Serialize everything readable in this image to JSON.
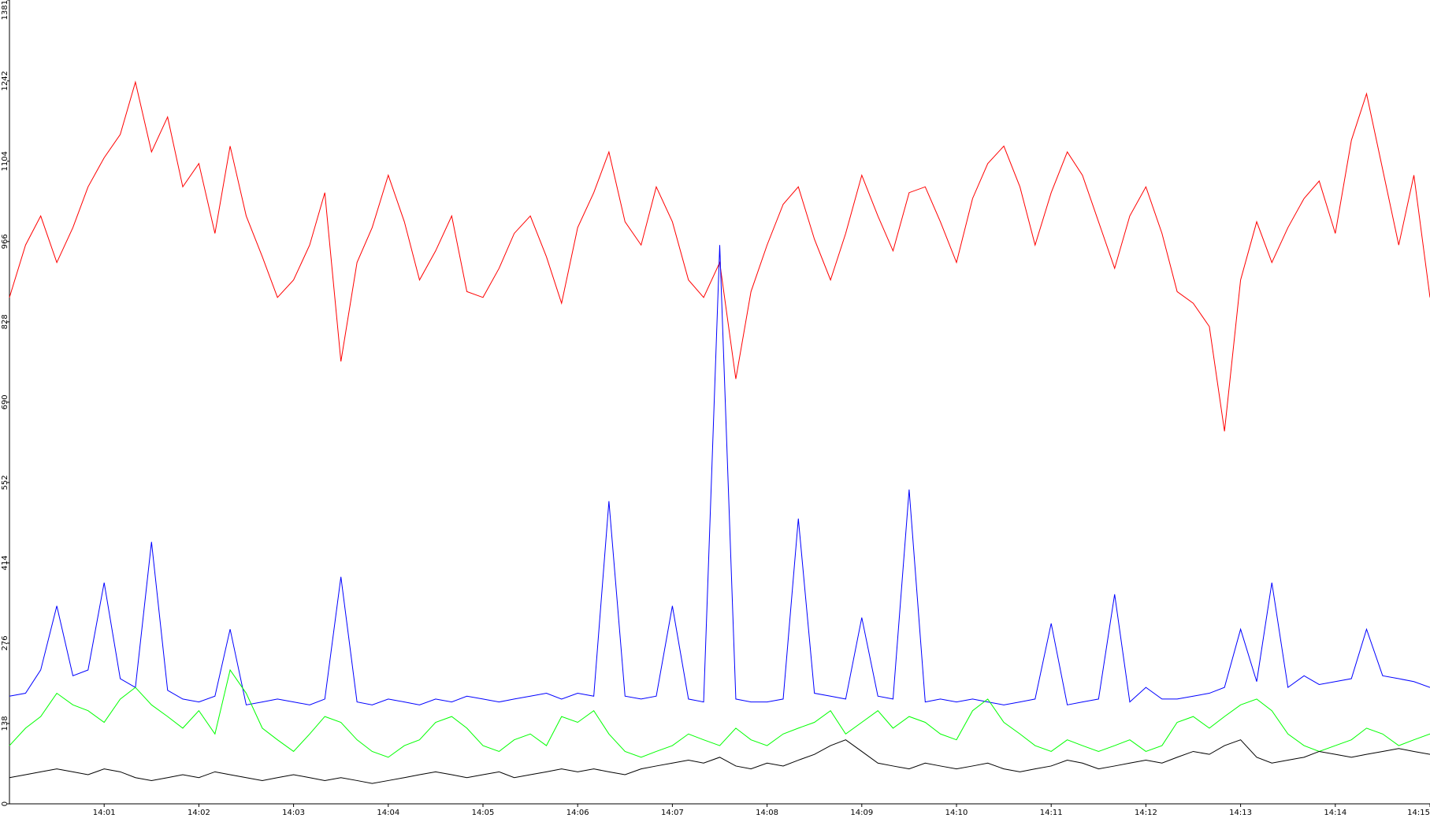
{
  "chart_data": {
    "type": "line",
    "x": [
      840,
      840.17,
      840.33,
      840.5,
      840.67,
      840.83,
      841,
      841.17,
      841.33,
      841.5,
      841.67,
      841.83,
      842,
      842.17,
      842.33,
      842.5,
      842.67,
      842.83,
      843,
      843.17,
      843.33,
      843.5,
      843.67,
      843.83,
      844,
      844.17,
      844.33,
      844.5,
      844.67,
      844.83,
      845,
      845.17,
      845.33,
      845.5,
      845.67,
      845.83,
      846,
      846.17,
      846.33,
      846.5,
      846.67,
      846.83,
      847,
      847.17,
      847.33,
      847.5,
      847.67,
      847.83,
      848,
      848.17,
      848.33,
      848.5,
      848.67,
      848.83,
      849,
      849.17,
      849.33,
      849.5,
      849.67,
      849.83,
      850,
      850.17,
      850.33,
      850.5,
      850.67,
      850.83,
      851,
      851.17,
      851.33,
      851.5,
      851.67,
      851.83,
      852,
      852.17,
      852.33,
      852.5,
      852.67,
      852.83,
      853,
      853.17,
      853.33,
      853.5,
      853.67,
      853.83,
      854,
      854.17,
      854.33,
      854.5,
      854.67,
      854.83,
      855
    ],
    "series": [
      {
        "color": "#ff0000",
        "values": [
          870,
          960,
          1010,
          930,
          990,
          1060,
          1110,
          1150,
          1240,
          1120,
          1180,
          1060,
          1100,
          980,
          1130,
          1010,
          940,
          870,
          900,
          960,
          1050,
          760,
          930,
          990,
          1080,
          1000,
          900,
          950,
          1010,
          880,
          870,
          920,
          980,
          1010,
          940,
          860,
          990,
          1050,
          1120,
          1000,
          960,
          1060,
          1000,
          900,
          870,
          930,
          730,
          880,
          960,
          1030,
          1060,
          970,
          900,
          980,
          1080,
          1010,
          950,
          1050,
          1060,
          1000,
          930,
          1040,
          1100,
          1130,
          1060,
          960,
          1050,
          1120,
          1080,
          1000,
          920,
          1010,
          1060,
          980,
          880,
          860,
          820,
          640,
          900,
          1000,
          930,
          990,
          1040,
          1070,
          980,
          1140,
          1220,
          1090,
          960,
          1080,
          870
        ]
      },
      {
        "color": "#0000ff",
        "values": [
          185,
          190,
          230,
          340,
          220,
          230,
          380,
          215,
          200,
          450,
          195,
          180,
          175,
          185,
          300,
          170,
          175,
          180,
          175,
          170,
          180,
          390,
          175,
          170,
          180,
          175,
          170,
          180,
          175,
          185,
          180,
          175,
          180,
          185,
          190,
          180,
          190,
          185,
          520,
          185,
          180,
          185,
          340,
          180,
          175,
          960,
          180,
          175,
          175,
          180,
          490,
          190,
          185,
          180,
          320,
          185,
          180,
          540,
          175,
          180,
          175,
          180,
          175,
          170,
          175,
          180,
          310,
          170,
          175,
          180,
          360,
          175,
          200,
          180,
          180,
          185,
          190,
          200,
          300,
          210,
          380,
          200,
          220,
          205,
          210,
          215,
          300,
          220,
          215,
          210,
          200
        ]
      },
      {
        "color": "#00ff00",
        "values": [
          100,
          130,
          150,
          190,
          170,
          160,
          140,
          180,
          200,
          170,
          150,
          130,
          160,
          120,
          230,
          190,
          130,
          110,
          90,
          120,
          150,
          140,
          110,
          90,
          80,
          100,
          110,
          140,
          150,
          130,
          100,
          90,
          110,
          120,
          100,
          150,
          140,
          160,
          120,
          90,
          80,
          90,
          100,
          120,
          110,
          100,
          130,
          110,
          100,
          120,
          130,
          140,
          160,
          120,
          140,
          160,
          130,
          150,
          140,
          120,
          110,
          160,
          180,
          140,
          120,
          100,
          90,
          110,
          100,
          90,
          100,
          110,
          90,
          100,
          140,
          150,
          130,
          150,
          170,
          180,
          160,
          120,
          100,
          90,
          100,
          110,
          130,
          120,
          100,
          110,
          120
        ]
      },
      {
        "color": "#000000",
        "values": [
          45,
          50,
          55,
          60,
          55,
          50,
          60,
          55,
          45,
          40,
          45,
          50,
          45,
          55,
          50,
          45,
          40,
          45,
          50,
          45,
          40,
          45,
          40,
          35,
          40,
          45,
          50,
          55,
          50,
          45,
          50,
          55,
          45,
          50,
          55,
          60,
          55,
          60,
          55,
          50,
          60,
          65,
          70,
          75,
          70,
          80,
          65,
          60,
          70,
          65,
          75,
          85,
          100,
          110,
          90,
          70,
          65,
          60,
          70,
          65,
          60,
          65,
          70,
          60,
          55,
          60,
          65,
          75,
          70,
          60,
          65,
          70,
          75,
          70,
          80,
          90,
          85,
          100,
          110,
          80,
          70,
          75,
          80,
          90,
          85,
          80,
          85,
          90,
          95,
          90,
          85
        ]
      }
    ],
    "xlim": [
      840,
      855
    ],
    "xticks": [
      {
        "value": 841,
        "label": "14:01"
      },
      {
        "value": 842,
        "label": "14:02"
      },
      {
        "value": 843,
        "label": "14:03"
      },
      {
        "value": 844,
        "label": "14:04"
      },
      {
        "value": 845,
        "label": "14:05"
      },
      {
        "value": 846,
        "label": "14:06"
      },
      {
        "value": 847,
        "label": "14:07"
      },
      {
        "value": 848,
        "label": "14:08"
      },
      {
        "value": 849,
        "label": "14:09"
      },
      {
        "value": 850,
        "label": "14:10"
      },
      {
        "value": 851,
        "label": "14:11"
      },
      {
        "value": 852,
        "label": "14:12"
      },
      {
        "value": 853,
        "label": "14:13"
      },
      {
        "value": 854,
        "label": "14:14"
      },
      {
        "value": 855,
        "label": "14:15"
      }
    ],
    "ylim": [
      0,
      1381
    ],
    "yticks": [
      0,
      138,
      276,
      414,
      552,
      690,
      828,
      966,
      1104,
      1242,
      1381
    ]
  }
}
